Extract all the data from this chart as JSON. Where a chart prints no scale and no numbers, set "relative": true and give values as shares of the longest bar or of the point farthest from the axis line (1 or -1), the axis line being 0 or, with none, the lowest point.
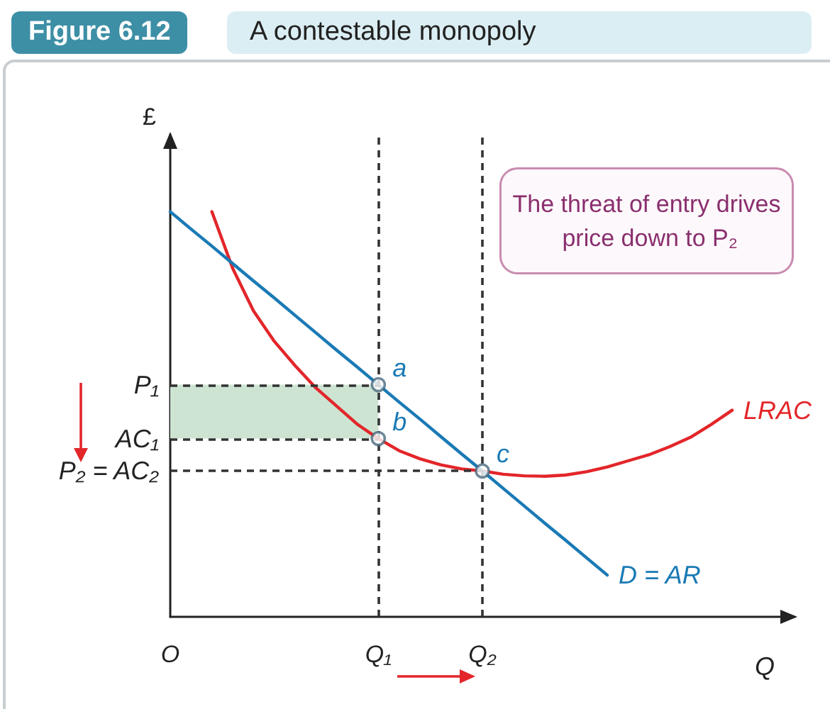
{
  "chart_data": {
    "type": "line",
    "title": "Figure 6.12",
    "subtitle": "A contestable monopoly",
    "xlabel": "Q",
    "ylabel": "£",
    "relative": true,
    "categories": [
      "O",
      null,
      null,
      null,
      null,
      null,
      null,
      null,
      null,
      null,
      "Q₁",
      null,
      null,
      null,
      null,
      "Q₂",
      null,
      null,
      null,
      null,
      null,
      null,
      null,
      null,
      null,
      null,
      null,
      null,
      null,
      null,
      null
    ],
    "series": [
      {
        "name": "LRAC",
        "color": "#e3262a",
        "values": [
          null,
          null,
          1.0,
          0.86,
          0.755,
          0.68,
          0.62,
          0.565,
          0.52,
          0.475,
          0.44,
          0.41,
          0.39,
          0.375,
          0.365,
          0.36,
          0.352,
          0.348,
          0.347,
          0.35,
          0.358,
          0.37,
          0.385,
          0.4,
          0.42,
          0.443,
          0.475,
          0.51,
          null,
          null,
          null
        ]
      },
      {
        "name": "D = AR",
        "color": "#1a7ab5",
        "values": [
          1.0,
          0.957,
          0.915,
          0.872,
          0.829,
          0.787,
          0.744,
          0.701,
          0.658,
          0.616,
          0.573,
          0.53,
          0.488,
          0.445,
          0.402,
          0.36,
          0.317,
          0.274,
          0.231,
          0.189,
          0.146,
          0.103,
          null,
          null,
          null,
          null,
          null,
          null,
          null,
          null,
          null
        ]
      },
      {
        "type": "scatter",
        "marker": "circle",
        "color": "#4a6a80",
        "x": [
          "Q₁",
          "Q₁",
          "Q₂"
        ],
        "values": [
          0.573,
          0.44,
          0.36
        ]
      }
    ],
    "ref_lines": [
      {
        "axis": "y",
        "value": 0.573,
        "label": "P₁",
        "color": "#333333",
        "line_style": "dashed"
      },
      {
        "axis": "y",
        "value": 0.44,
        "label": "AC₁",
        "color": "#333333",
        "line_style": "dashed"
      },
      {
        "axis": "y",
        "value": 0.36,
        "label": "P₂ = AC₂",
        "color": "#333333",
        "line_style": "dashed"
      },
      {
        "axis": "x",
        "value": "Q₁",
        "color": "#333333",
        "line_style": "dashed"
      },
      {
        "axis": "x",
        "value": "Q₂",
        "color": "#333333",
        "line_style": "dashed"
      }
    ],
    "bands": [
      {
        "axis": "y",
        "from": 0.44,
        "to": 0.573,
        "color": "#cde4d3"
      }
    ],
    "annotations": [
      "The threat of entry drives price down to P₂",
      {
        "text": "a",
        "x": "Q₁",
        "y": 0.573
      },
      {
        "text": "b",
        "x": "Q₁",
        "y": 0.44
      },
      {
        "text": "c",
        "x": "Q₂",
        "y": 0.36
      }
    ]
  }
}
